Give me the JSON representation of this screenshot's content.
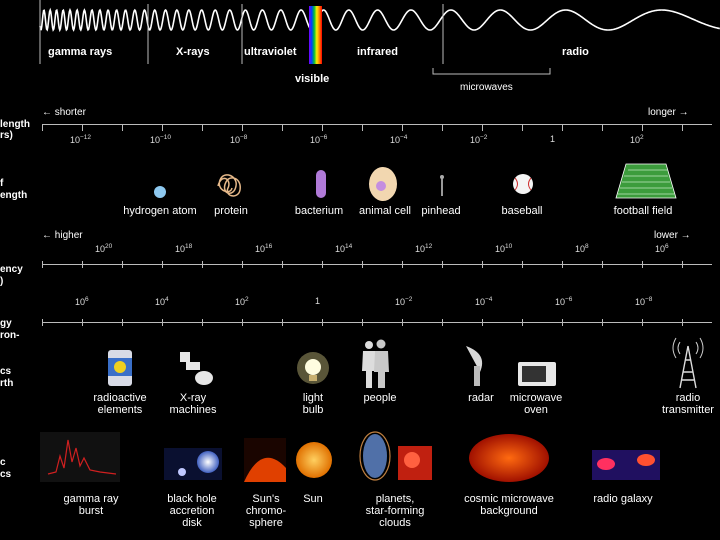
{
  "bands": {
    "gamma": "gamma rays",
    "xray": "X-rays",
    "uv": "ultraviolet",
    "visible": "visible",
    "infrared": "infrared",
    "radio": "radio",
    "microwaves": "microwaves"
  },
  "wavelength": {
    "side_label_1": "length",
    "side_label_2": "rs)",
    "shorter": "shorter",
    "longer": "longer",
    "ticks": [
      {
        "base": "10",
        "exp": "−12"
      },
      {
        "base": "10",
        "exp": "−10"
      },
      {
        "base": "10",
        "exp": "−8"
      },
      {
        "base": "10",
        "exp": "−6"
      },
      {
        "base": "10",
        "exp": "−4"
      },
      {
        "base": "10",
        "exp": "−2"
      },
      {
        "base": "1",
        "exp": ""
      },
      {
        "base": "10",
        "exp": "2"
      }
    ]
  },
  "size": {
    "side_label_1": "f",
    "side_label_2": "ength",
    "items": [
      "hydrogen atom",
      "protein",
      "bacterium",
      "animal cell",
      "pinhead",
      "baseball",
      "football field"
    ]
  },
  "frequency": {
    "higher": "higher",
    "lower": "lower",
    "side_label_1": "ency",
    "side_label_2": ")",
    "ticks": [
      {
        "base": "10",
        "exp": "20"
      },
      {
        "base": "10",
        "exp": "18"
      },
      {
        "base": "10",
        "exp": "16"
      },
      {
        "base": "10",
        "exp": "14"
      },
      {
        "base": "10",
        "exp": "12"
      },
      {
        "base": "10",
        "exp": "10"
      },
      {
        "base": "10",
        "exp": "8"
      },
      {
        "base": "10",
        "exp": "6"
      }
    ]
  },
  "energy": {
    "side_label_1": "gy",
    "side_label_2": "ron-",
    "ticks": [
      {
        "base": "10",
        "exp": "6"
      },
      {
        "base": "10",
        "exp": "4"
      },
      {
        "base": "10",
        "exp": "2"
      },
      {
        "base": "1",
        "exp": ""
      },
      {
        "base": "10",
        "exp": "−2"
      },
      {
        "base": "10",
        "exp": "−4"
      },
      {
        "base": "10",
        "exp": "−6"
      },
      {
        "base": "10",
        "exp": "−8"
      }
    ]
  },
  "sources_earth": {
    "side_label_1": "cs",
    "side_label_2": "rth",
    "items": [
      [
        "radioactive",
        "elements"
      ],
      [
        "X-ray",
        "machines"
      ],
      [
        "light",
        "bulb"
      ],
      [
        "people",
        ""
      ],
      [
        "radar",
        ""
      ],
      [
        "microwave",
        "oven"
      ],
      [
        "radio",
        "transmitter"
      ]
    ]
  },
  "sources_cosmic": {
    "side_label_1": "c",
    "side_label_2": "cs",
    "items": [
      [
        "gamma ray",
        "burst",
        ""
      ],
      [
        "black hole",
        "accretion",
        "disk"
      ],
      [
        "Sun's",
        "chromo-",
        "sphere"
      ],
      [
        "Sun",
        "",
        ""
      ],
      [
        "planets,",
        "star-forming",
        "clouds"
      ],
      [
        "cosmic microwave",
        "background",
        ""
      ],
      [
        "radio galaxy",
        "",
        ""
      ]
    ]
  }
}
